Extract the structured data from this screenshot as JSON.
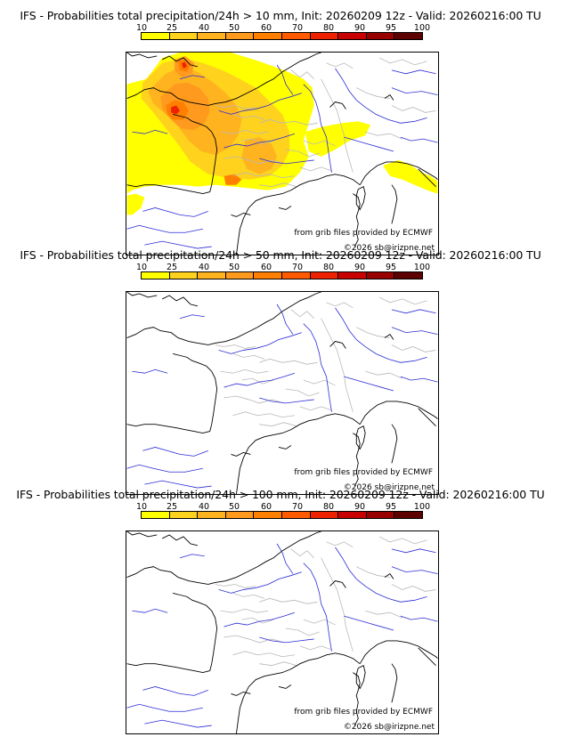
{
  "colorbar": {
    "labels": [
      "10",
      "25",
      "40",
      "50",
      "60",
      "70",
      "80",
      "90",
      "95",
      "100"
    ],
    "colors": [
      "#ffff00",
      "#ffd21e",
      "#ffb31e",
      "#ff9a1e",
      "#ff7f00",
      "#ff5a00",
      "#ee2200",
      "#c80000",
      "#980000",
      "#5c0000"
    ]
  },
  "map_style": {
    "coast_color": "#000000",
    "river_color": "#2b2bd6",
    "border_color": "#b8b8b8"
  },
  "panels": [
    {
      "title": "IFS - Probabilities total precipitation/24h > 10 mm, Init: 20260209 12z - Valid: 20260216:00 TU",
      "credit_source": "from grib files provided by ECMWF",
      "credit_copyright": "©2026 sb@irizpne.net",
      "has_probability_shading": true
    },
    {
      "title": "IFS - Probabilities total precipitation/24h > 50 mm, Init: 20260209 12z - Valid: 20260216:00 TU",
      "credit_source": "from grib files provided by ECMWF",
      "credit_copyright": "©2026 sb@irizpne.net",
      "has_probability_shading": false
    },
    {
      "title": "IFS - Probabilities total precipitation/24h > 100 mm, Init: 20260209 12z - Valid: 20260216:00 TU",
      "credit_source": "from grib files provided by ECMWF",
      "credit_copyright": "©2026 sb@irizpne.net",
      "has_probability_shading": false
    }
  ]
}
